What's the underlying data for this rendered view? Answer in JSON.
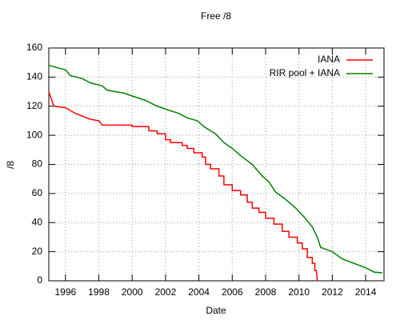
{
  "chart_data": {
    "type": "line",
    "title": "Free /8",
    "xlabel": "Date",
    "ylabel": "/8",
    "xlim": [
      1995,
      2015.1
    ],
    "xticks": [
      1996,
      1998,
      2000,
      2002,
      2004,
      2006,
      2008,
      2010,
      2012,
      2014
    ],
    "ylim": [
      0,
      160
    ],
    "yticks": [
      0,
      20,
      40,
      60,
      80,
      100,
      120,
      140,
      160
    ],
    "grid": true,
    "legend": "top-right",
    "series": [
      {
        "name": "IANA",
        "color": "#ff0000",
        "x": [
          1995,
          1995.3,
          1995.3,
          1996,
          1996,
          1996.6,
          1996.6,
          1997.5,
          1997.5,
          1998,
          1998,
          1998.2,
          1998.2,
          2000,
          2000,
          2001,
          2001,
          2001.5,
          2001.5,
          2002,
          2002,
          2002.3,
          2002.3,
          2003,
          2003,
          2003.3,
          2003.3,
          2003.7,
          2003.7,
          2004.2,
          2004.2,
          2004.4,
          2004.4,
          2004.7,
          2004.7,
          2005.2,
          2005.2,
          2005.5,
          2005.5,
          2006,
          2006,
          2006.5,
          2006.5,
          2006.9,
          2006.9,
          2007.2,
          2007.2,
          2007.6,
          2007.6,
          2008,
          2008,
          2008.5,
          2008.5,
          2009,
          2009,
          2009.4,
          2009.4,
          2009.9,
          2009.9,
          2010.2,
          2010.2,
          2010.5,
          2010.5,
          2010.8,
          2010.8,
          2010.95,
          2010.95,
          2011.05,
          2011.1
        ],
        "values": [
          130,
          120,
          120,
          119,
          119,
          115,
          115,
          111,
          111,
          110,
          110,
          107,
          107,
          107,
          106,
          106,
          103,
          103,
          101,
          101,
          97,
          97,
          95,
          95,
          93,
          93,
          91,
          91,
          88,
          88,
          85,
          85,
          80,
          80,
          77,
          77,
          72,
          72,
          66,
          66,
          62,
          62,
          59,
          59,
          54,
          54,
          50,
          50,
          47,
          47,
          43,
          43,
          39,
          39,
          34,
          34,
          30,
          30,
          26,
          26,
          22,
          22,
          16,
          16,
          12,
          12,
          7,
          7,
          0
        ]
      },
      {
        "name": "RIR pool + IANA",
        "color": "#008000",
        "x": [
          1995,
          1996,
          1996.3,
          1997,
          1997.5,
          1998.2,
          1998.5,
          1999.5,
          2000,
          2000.8,
          2001.5,
          2002,
          2002.8,
          2003.3,
          2003.9,
          2004.3,
          2005,
          2005.5,
          2006,
          2006.5,
          2007.2,
          2007.8,
          2008.2,
          2008.6,
          2009.2,
          2009.8,
          2010.3,
          2010.8,
          2011.1,
          2011.3,
          2012,
          2012.6,
          2013.3,
          2014,
          2014.5,
          2015
        ],
        "values": [
          148,
          145,
          141,
          139,
          136,
          134,
          131,
          129,
          127,
          124,
          120,
          118,
          115,
          112,
          110,
          106,
          101,
          95,
          91,
          86,
          80,
          72,
          68,
          61,
          56,
          50,
          44,
          37,
          30,
          23,
          20,
          15,
          12,
          9,
          6,
          5.5
        ]
      }
    ]
  }
}
